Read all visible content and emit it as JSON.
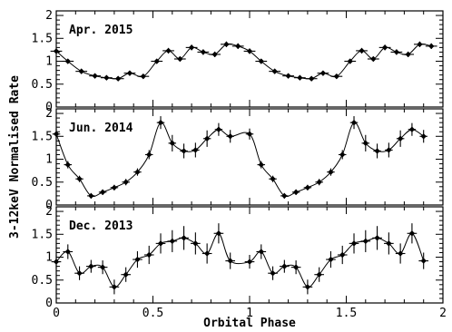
{
  "chart_data": [
    {
      "type": "scatter",
      "title": "Apr. 2015",
      "xlim": [
        0,
        2
      ],
      "ylim": [
        0,
        2.1
      ],
      "yticks": [
        "0",
        "0.5",
        "1",
        "1.5",
        "2"
      ],
      "series": [
        {
          "points": [
            {
              "x": 0.0,
              "y": 1.22,
              "yerr": 0.06,
              "xerr": 0.03
            },
            {
              "x": 0.06,
              "y": 1.0,
              "yerr": 0.05,
              "xerr": 0.03
            },
            {
              "x": 0.13,
              "y": 0.78,
              "yerr": 0.05,
              "xerr": 0.03
            },
            {
              "x": 0.2,
              "y": 0.68,
              "yerr": 0.04,
              "xerr": 0.03
            },
            {
              "x": 0.26,
              "y": 0.64,
              "yerr": 0.04,
              "xerr": 0.03
            },
            {
              "x": 0.32,
              "y": 0.62,
              "yerr": 0.04,
              "xerr": 0.03
            },
            {
              "x": 0.38,
              "y": 0.74,
              "yerr": 0.05,
              "xerr": 0.03
            },
            {
              "x": 0.45,
              "y": 0.67,
              "yerr": 0.05,
              "xerr": 0.03
            },
            {
              "x": 0.52,
              "y": 1.0,
              "yerr": 0.05,
              "xerr": 0.03
            },
            {
              "x": 0.58,
              "y": 1.23,
              "yerr": 0.06,
              "xerr": 0.03
            },
            {
              "x": 0.64,
              "y": 1.05,
              "yerr": 0.05,
              "xerr": 0.03
            },
            {
              "x": 0.7,
              "y": 1.3,
              "yerr": 0.06,
              "xerr": 0.03
            },
            {
              "x": 0.76,
              "y": 1.2,
              "yerr": 0.06,
              "xerr": 0.03
            },
            {
              "x": 0.82,
              "y": 1.15,
              "yerr": 0.06,
              "xerr": 0.03
            },
            {
              "x": 0.88,
              "y": 1.37,
              "yerr": 0.06,
              "xerr": 0.03
            },
            {
              "x": 0.94,
              "y": 1.33,
              "yerr": 0.06,
              "xerr": 0.03
            }
          ]
        }
      ]
    },
    {
      "type": "scatter",
      "title": "Jun. 2014",
      "xlim": [
        0,
        2
      ],
      "ylim": [
        0,
        2.1
      ],
      "yticks": [
        "0",
        "0.5",
        "1",
        "1.5",
        "2"
      ],
      "series": [
        {
          "points": [
            {
              "x": 0.0,
              "y": 1.55,
              "yerr": 0.12,
              "xerr": 0.02
            },
            {
              "x": 0.06,
              "y": 0.88,
              "yerr": 0.08,
              "xerr": 0.02
            },
            {
              "x": 0.12,
              "y": 0.57,
              "yerr": 0.07,
              "xerr": 0.02
            },
            {
              "x": 0.18,
              "y": 0.2,
              "yerr": 0.06,
              "xerr": 0.02
            },
            {
              "x": 0.24,
              "y": 0.28,
              "yerr": 0.06,
              "xerr": 0.02
            },
            {
              "x": 0.3,
              "y": 0.38,
              "yerr": 0.06,
              "xerr": 0.02
            },
            {
              "x": 0.36,
              "y": 0.5,
              "yerr": 0.07,
              "xerr": 0.02
            },
            {
              "x": 0.42,
              "y": 0.72,
              "yerr": 0.08,
              "xerr": 0.02
            },
            {
              "x": 0.48,
              "y": 1.1,
              "yerr": 0.1,
              "xerr": 0.02
            },
            {
              "x": 0.54,
              "y": 1.8,
              "yerr": 0.14,
              "xerr": 0.02
            },
            {
              "x": 0.6,
              "y": 1.35,
              "yerr": 0.18,
              "xerr": 0.02
            },
            {
              "x": 0.66,
              "y": 1.18,
              "yerr": 0.16,
              "xerr": 0.02
            },
            {
              "x": 0.72,
              "y": 1.2,
              "yerr": 0.16,
              "xerr": 0.02
            },
            {
              "x": 0.78,
              "y": 1.45,
              "yerr": 0.18,
              "xerr": 0.02
            },
            {
              "x": 0.84,
              "y": 1.65,
              "yerr": 0.14,
              "xerr": 0.02
            },
            {
              "x": 0.9,
              "y": 1.5,
              "yerr": 0.14,
              "xerr": 0.02
            }
          ]
        }
      ]
    },
    {
      "type": "scatter",
      "title": "Dec. 2013",
      "xlim": [
        0,
        2
      ],
      "ylim": [
        0,
        2.1
      ],
      "yticks": [
        "0",
        "0.5",
        "1",
        "1.5",
        "2"
      ],
      "xticks": [
        "0",
        "0.5",
        "1",
        "1.5",
        "2"
      ],
      "xlabel": "Orbital Phase",
      "series": [
        {
          "points": [
            {
              "x": 0.0,
              "y": 0.9,
              "yerr": 0.15,
              "xerr": 0.025
            },
            {
              "x": 0.06,
              "y": 1.12,
              "yerr": 0.16,
              "xerr": 0.025
            },
            {
              "x": 0.12,
              "y": 0.65,
              "yerr": 0.15,
              "xerr": 0.025
            },
            {
              "x": 0.18,
              "y": 0.8,
              "yerr": 0.14,
              "xerr": 0.025
            },
            {
              "x": 0.24,
              "y": 0.78,
              "yerr": 0.15,
              "xerr": 0.025
            },
            {
              "x": 0.3,
              "y": 0.35,
              "yerr": 0.16,
              "xerr": 0.025
            },
            {
              "x": 0.36,
              "y": 0.62,
              "yerr": 0.16,
              "xerr": 0.025
            },
            {
              "x": 0.42,
              "y": 0.95,
              "yerr": 0.18,
              "xerr": 0.025
            },
            {
              "x": 0.48,
              "y": 1.05,
              "yerr": 0.2,
              "xerr": 0.025
            },
            {
              "x": 0.54,
              "y": 1.3,
              "yerr": 0.22,
              "xerr": 0.025
            },
            {
              "x": 0.6,
              "y": 1.35,
              "yerr": 0.24,
              "xerr": 0.025
            },
            {
              "x": 0.66,
              "y": 1.42,
              "yerr": 0.26,
              "xerr": 0.025
            },
            {
              "x": 0.72,
              "y": 1.3,
              "yerr": 0.24,
              "xerr": 0.025
            },
            {
              "x": 0.78,
              "y": 1.08,
              "yerr": 0.22,
              "xerr": 0.025
            },
            {
              "x": 0.84,
              "y": 1.52,
              "yerr": 0.22,
              "xerr": 0.025
            },
            {
              "x": 0.9,
              "y": 0.92,
              "yerr": 0.18,
              "xerr": 0.025
            }
          ]
        }
      ]
    }
  ],
  "ylabel": "3-12keV Normalised Rate"
}
